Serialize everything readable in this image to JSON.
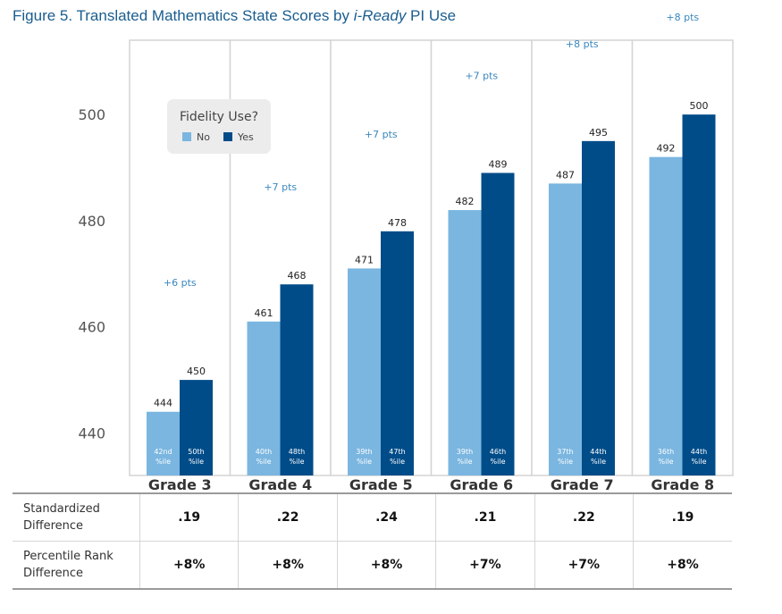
{
  "figure": {
    "title_prefix": "Figure 5. Translated Mathematics State Scores by ",
    "title_italic": "i-Ready",
    "title_suffix": " PI Use"
  },
  "chart_data": {
    "type": "bar",
    "title": "Figure 5. Translated Mathematics State Scores by i-Ready PI Use",
    "categories": [
      "Grade 3",
      "Grade 4",
      "Grade 5",
      "Grade 6",
      "Grade 7",
      "Grade 8"
    ],
    "series": [
      {
        "name": "No",
        "color": "#7ab6e0",
        "values": [
          444,
          461,
          471,
          482,
          487,
          492
        ],
        "percentile_labels": [
          [
            "42nd",
            "%ile"
          ],
          [
            "40th",
            "%ile"
          ],
          [
            "39th",
            "%ile"
          ],
          [
            "39th",
            "%ile"
          ],
          [
            "37th",
            "%ile"
          ],
          [
            "36th",
            "%ile"
          ]
        ]
      },
      {
        "name": "Yes",
        "color": "#004c89",
        "values": [
          450,
          468,
          478,
          489,
          495,
          500
        ],
        "percentile_labels": [
          [
            "50th",
            "%ile"
          ],
          [
            "48th",
            "%ile"
          ],
          [
            "47th",
            "%ile"
          ],
          [
            "46th",
            "%ile"
          ],
          [
            "44th",
            "%ile"
          ],
          [
            "44th",
            "%ile"
          ]
        ]
      }
    ],
    "differences": [
      "+6 pts",
      "+7 pts",
      "+7 pts",
      "+7 pts",
      "+8 pts",
      "+8 pts"
    ],
    "yticks": [
      440,
      460,
      480,
      500
    ],
    "ylim": [
      432,
      514
    ],
    "legend": {
      "title": "Fidelity Use?",
      "position": "top-left",
      "labels": [
        "No",
        "Yes"
      ]
    },
    "colors": {
      "no": "#7ab6e0",
      "yes": "#004c89",
      "annotation": "#3a87c0",
      "title": "#1a5d8f"
    }
  },
  "table": {
    "rows": [
      {
        "label_lines": [
          "Standardized",
          "Difference"
        ],
        "values": [
          ".19",
          ".22",
          ".24",
          ".21",
          ".22",
          ".19"
        ]
      },
      {
        "label_lines": [
          "Percentile Rank",
          "Difference"
        ],
        "values": [
          "+8%",
          "+8%",
          "+8%",
          "+7%",
          "+7%",
          "+8%"
        ]
      }
    ]
  }
}
